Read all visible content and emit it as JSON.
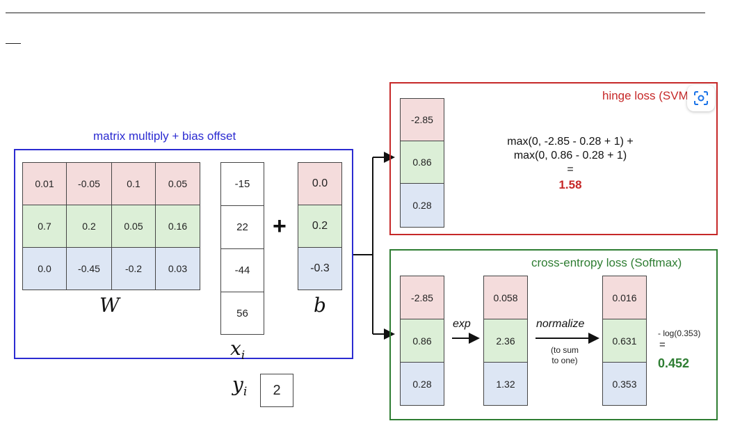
{
  "linear": {
    "label": "matrix multiply + bias offset",
    "W": {
      "name": "W",
      "rows": [
        [
          "0.01",
          "-0.05",
          "0.1",
          "0.05"
        ],
        [
          "0.7",
          "0.2",
          "0.05",
          "0.16"
        ],
        [
          "0.0",
          "-0.45",
          "-0.2",
          "0.03"
        ]
      ]
    },
    "x": {
      "name": "x",
      "sub": "i",
      "values": [
        "-15",
        "22",
        "-44",
        "56"
      ]
    },
    "plus": "+",
    "b": {
      "name": "b",
      "values": [
        "0.0",
        "0.2",
        "-0.3"
      ]
    }
  },
  "label_y": {
    "name": "y",
    "sub": "i",
    "value": "2"
  },
  "hinge": {
    "title": "hinge loss (SVM)",
    "scores": [
      "-2.85",
      "0.86",
      "0.28"
    ],
    "formula": [
      "max(0, -2.85 - 0.28 + 1) +",
      "max(0, 0.86 - 0.28 + 1)",
      "="
    ],
    "result": "1.58"
  },
  "softmax": {
    "title": "cross-entropy loss (Softmax)",
    "scores": [
      "-2.85",
      "0.86",
      "0.28"
    ],
    "exp_label": "exp",
    "exp_values": [
      "0.058",
      "2.36",
      "1.32"
    ],
    "normalize_label": "normalize",
    "normalize_note": [
      "(to sum",
      "to one)"
    ],
    "probs": [
      "0.016",
      "0.631",
      "0.353"
    ],
    "loss_expr": "- log(0.353)",
    "equals": "=",
    "result": "0.452"
  },
  "colors": {
    "linear_border": "#2b2bd1",
    "hinge_border": "#c62828",
    "softmax_border": "#2e7d32",
    "row_1": "#f4dcdc",
    "row_2": "#dcefd7",
    "row_3": "#dde6f4"
  },
  "icons": {
    "overlay": "lens-search-icon"
  }
}
